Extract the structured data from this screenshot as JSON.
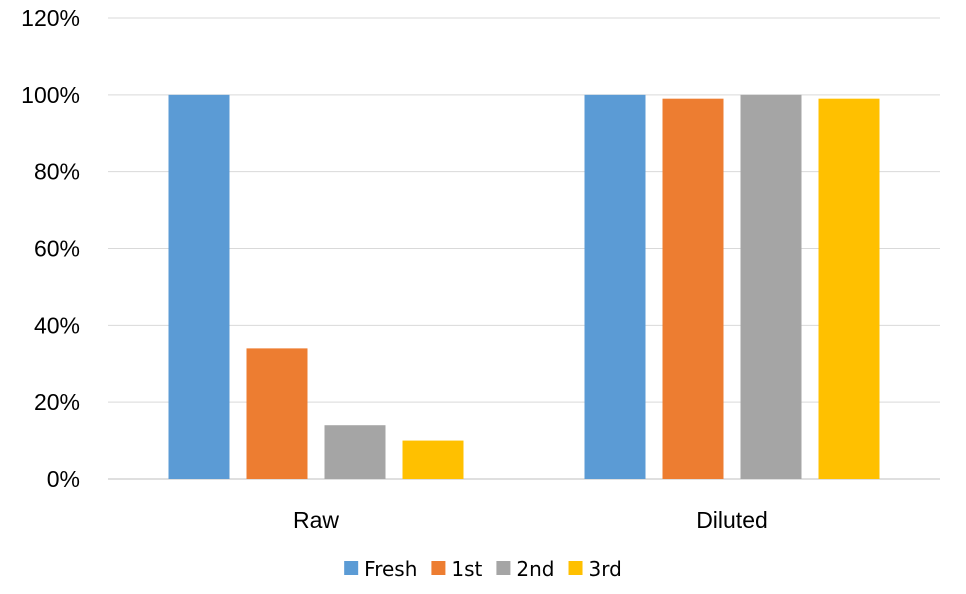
{
  "chart_data": {
    "type": "bar",
    "title": "",
    "xlabel": "",
    "ylabel": "",
    "categories": [
      "Raw",
      "Diluted"
    ],
    "ylim": [
      0,
      1.2
    ],
    "yticks": [
      0,
      0.2,
      0.4,
      0.6,
      0.8,
      1.0,
      1.2
    ],
    "ytick_labels": [
      "0%",
      "20%",
      "40%",
      "60%",
      "80%",
      "100%",
      "120%"
    ],
    "grid": true,
    "legend_position": "bottom",
    "series": [
      {
        "name": "Fresh",
        "color": "#5B9BD5",
        "values": [
          1.0,
          1.0
        ]
      },
      {
        "name": "1st",
        "color": "#ED7D31",
        "values": [
          0.34,
          0.99
        ]
      },
      {
        "name": "2nd",
        "color": "#A5A5A5",
        "values": [
          0.14,
          1.0
        ]
      },
      {
        "name": "3rd",
        "color": "#FFC000",
        "values": [
          0.1,
          0.99
        ]
      }
    ]
  }
}
